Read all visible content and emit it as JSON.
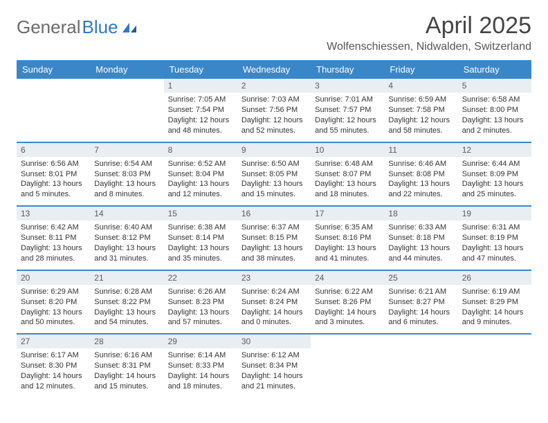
{
  "logo": {
    "part1": "General",
    "part2": "Blue"
  },
  "title": "April 2025",
  "location": "Wolfenschiessen, Nidwalden, Switzerland",
  "colors": {
    "header_bg": "#3a87c8",
    "header_text": "#ffffff",
    "daynum_bg": "#e9eef2",
    "row_border": "#3a87c8",
    "body_text": "#333333",
    "logo_gray": "#6a6a6a",
    "logo_blue": "#2f78c3"
  },
  "day_headers": [
    "Sunday",
    "Monday",
    "Tuesday",
    "Wednesday",
    "Thursday",
    "Friday",
    "Saturday"
  ],
  "weeks": [
    [
      {
        "n": "",
        "sr": "",
        "ss": "",
        "dl": ""
      },
      {
        "n": "",
        "sr": "",
        "ss": "",
        "dl": ""
      },
      {
        "n": "1",
        "sr": "Sunrise: 7:05 AM",
        "ss": "Sunset: 7:54 PM",
        "dl": "Daylight: 12 hours and 48 minutes."
      },
      {
        "n": "2",
        "sr": "Sunrise: 7:03 AM",
        "ss": "Sunset: 7:56 PM",
        "dl": "Daylight: 12 hours and 52 minutes."
      },
      {
        "n": "3",
        "sr": "Sunrise: 7:01 AM",
        "ss": "Sunset: 7:57 PM",
        "dl": "Daylight: 12 hours and 55 minutes."
      },
      {
        "n": "4",
        "sr": "Sunrise: 6:59 AM",
        "ss": "Sunset: 7:58 PM",
        "dl": "Daylight: 12 hours and 58 minutes."
      },
      {
        "n": "5",
        "sr": "Sunrise: 6:58 AM",
        "ss": "Sunset: 8:00 PM",
        "dl": "Daylight: 13 hours and 2 minutes."
      }
    ],
    [
      {
        "n": "6",
        "sr": "Sunrise: 6:56 AM",
        "ss": "Sunset: 8:01 PM",
        "dl": "Daylight: 13 hours and 5 minutes."
      },
      {
        "n": "7",
        "sr": "Sunrise: 6:54 AM",
        "ss": "Sunset: 8:03 PM",
        "dl": "Daylight: 13 hours and 8 minutes."
      },
      {
        "n": "8",
        "sr": "Sunrise: 6:52 AM",
        "ss": "Sunset: 8:04 PM",
        "dl": "Daylight: 13 hours and 12 minutes."
      },
      {
        "n": "9",
        "sr": "Sunrise: 6:50 AM",
        "ss": "Sunset: 8:05 PM",
        "dl": "Daylight: 13 hours and 15 minutes."
      },
      {
        "n": "10",
        "sr": "Sunrise: 6:48 AM",
        "ss": "Sunset: 8:07 PM",
        "dl": "Daylight: 13 hours and 18 minutes."
      },
      {
        "n": "11",
        "sr": "Sunrise: 6:46 AM",
        "ss": "Sunset: 8:08 PM",
        "dl": "Daylight: 13 hours and 22 minutes."
      },
      {
        "n": "12",
        "sr": "Sunrise: 6:44 AM",
        "ss": "Sunset: 8:09 PM",
        "dl": "Daylight: 13 hours and 25 minutes."
      }
    ],
    [
      {
        "n": "13",
        "sr": "Sunrise: 6:42 AM",
        "ss": "Sunset: 8:11 PM",
        "dl": "Daylight: 13 hours and 28 minutes."
      },
      {
        "n": "14",
        "sr": "Sunrise: 6:40 AM",
        "ss": "Sunset: 8:12 PM",
        "dl": "Daylight: 13 hours and 31 minutes."
      },
      {
        "n": "15",
        "sr": "Sunrise: 6:38 AM",
        "ss": "Sunset: 8:14 PM",
        "dl": "Daylight: 13 hours and 35 minutes."
      },
      {
        "n": "16",
        "sr": "Sunrise: 6:37 AM",
        "ss": "Sunset: 8:15 PM",
        "dl": "Daylight: 13 hours and 38 minutes."
      },
      {
        "n": "17",
        "sr": "Sunrise: 6:35 AM",
        "ss": "Sunset: 8:16 PM",
        "dl": "Daylight: 13 hours and 41 minutes."
      },
      {
        "n": "18",
        "sr": "Sunrise: 6:33 AM",
        "ss": "Sunset: 8:18 PM",
        "dl": "Daylight: 13 hours and 44 minutes."
      },
      {
        "n": "19",
        "sr": "Sunrise: 6:31 AM",
        "ss": "Sunset: 8:19 PM",
        "dl": "Daylight: 13 hours and 47 minutes."
      }
    ],
    [
      {
        "n": "20",
        "sr": "Sunrise: 6:29 AM",
        "ss": "Sunset: 8:20 PM",
        "dl": "Daylight: 13 hours and 50 minutes."
      },
      {
        "n": "21",
        "sr": "Sunrise: 6:28 AM",
        "ss": "Sunset: 8:22 PM",
        "dl": "Daylight: 13 hours and 54 minutes."
      },
      {
        "n": "22",
        "sr": "Sunrise: 6:26 AM",
        "ss": "Sunset: 8:23 PM",
        "dl": "Daylight: 13 hours and 57 minutes."
      },
      {
        "n": "23",
        "sr": "Sunrise: 6:24 AM",
        "ss": "Sunset: 8:24 PM",
        "dl": "Daylight: 14 hours and 0 minutes."
      },
      {
        "n": "24",
        "sr": "Sunrise: 6:22 AM",
        "ss": "Sunset: 8:26 PM",
        "dl": "Daylight: 14 hours and 3 minutes."
      },
      {
        "n": "25",
        "sr": "Sunrise: 6:21 AM",
        "ss": "Sunset: 8:27 PM",
        "dl": "Daylight: 14 hours and 6 minutes."
      },
      {
        "n": "26",
        "sr": "Sunrise: 6:19 AM",
        "ss": "Sunset: 8:29 PM",
        "dl": "Daylight: 14 hours and 9 minutes."
      }
    ],
    [
      {
        "n": "27",
        "sr": "Sunrise: 6:17 AM",
        "ss": "Sunset: 8:30 PM",
        "dl": "Daylight: 14 hours and 12 minutes."
      },
      {
        "n": "28",
        "sr": "Sunrise: 6:16 AM",
        "ss": "Sunset: 8:31 PM",
        "dl": "Daylight: 14 hours and 15 minutes."
      },
      {
        "n": "29",
        "sr": "Sunrise: 6:14 AM",
        "ss": "Sunset: 8:33 PM",
        "dl": "Daylight: 14 hours and 18 minutes."
      },
      {
        "n": "30",
        "sr": "Sunrise: 6:12 AM",
        "ss": "Sunset: 8:34 PM",
        "dl": "Daylight: 14 hours and 21 minutes."
      },
      {
        "n": "",
        "sr": "",
        "ss": "",
        "dl": ""
      },
      {
        "n": "",
        "sr": "",
        "ss": "",
        "dl": ""
      },
      {
        "n": "",
        "sr": "",
        "ss": "",
        "dl": ""
      }
    ]
  ]
}
